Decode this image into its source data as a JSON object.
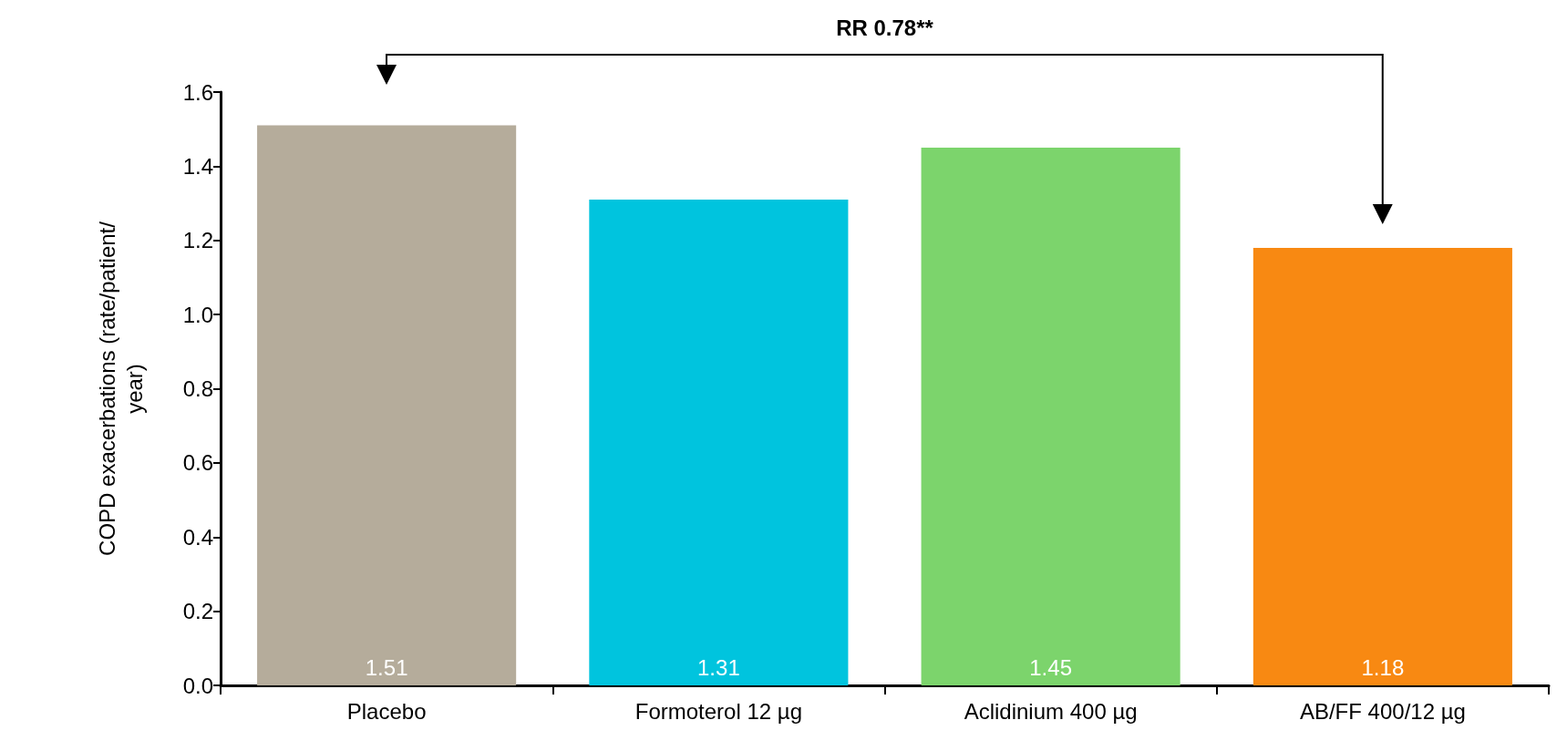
{
  "chart_data": {
    "type": "bar",
    "ylabel": "COPD exacerbations (rate/patient/ year)",
    "categories": [
      "Placebo",
      "Formoterol 12 µg",
      "Aclidinium 400 µg",
      "AB/FF 400/12 µg"
    ],
    "values": [
      1.51,
      1.31,
      1.45,
      1.18
    ],
    "colors": [
      "#b5ac9b",
      "#00c4de",
      "#7cd46c",
      "#f88912"
    ],
    "ylim": [
      0,
      1.6
    ],
    "yticks": [
      {
        "value": 0,
        "label": "0.0"
      },
      0.2,
      0.4,
      0.6,
      0.8,
      {
        "value": 1,
        "label": "1.0"
      },
      1.2,
      1.4,
      1.6
    ],
    "data_labels": true,
    "grid": false,
    "annotations": [
      "RR 0.78**"
    ]
  }
}
